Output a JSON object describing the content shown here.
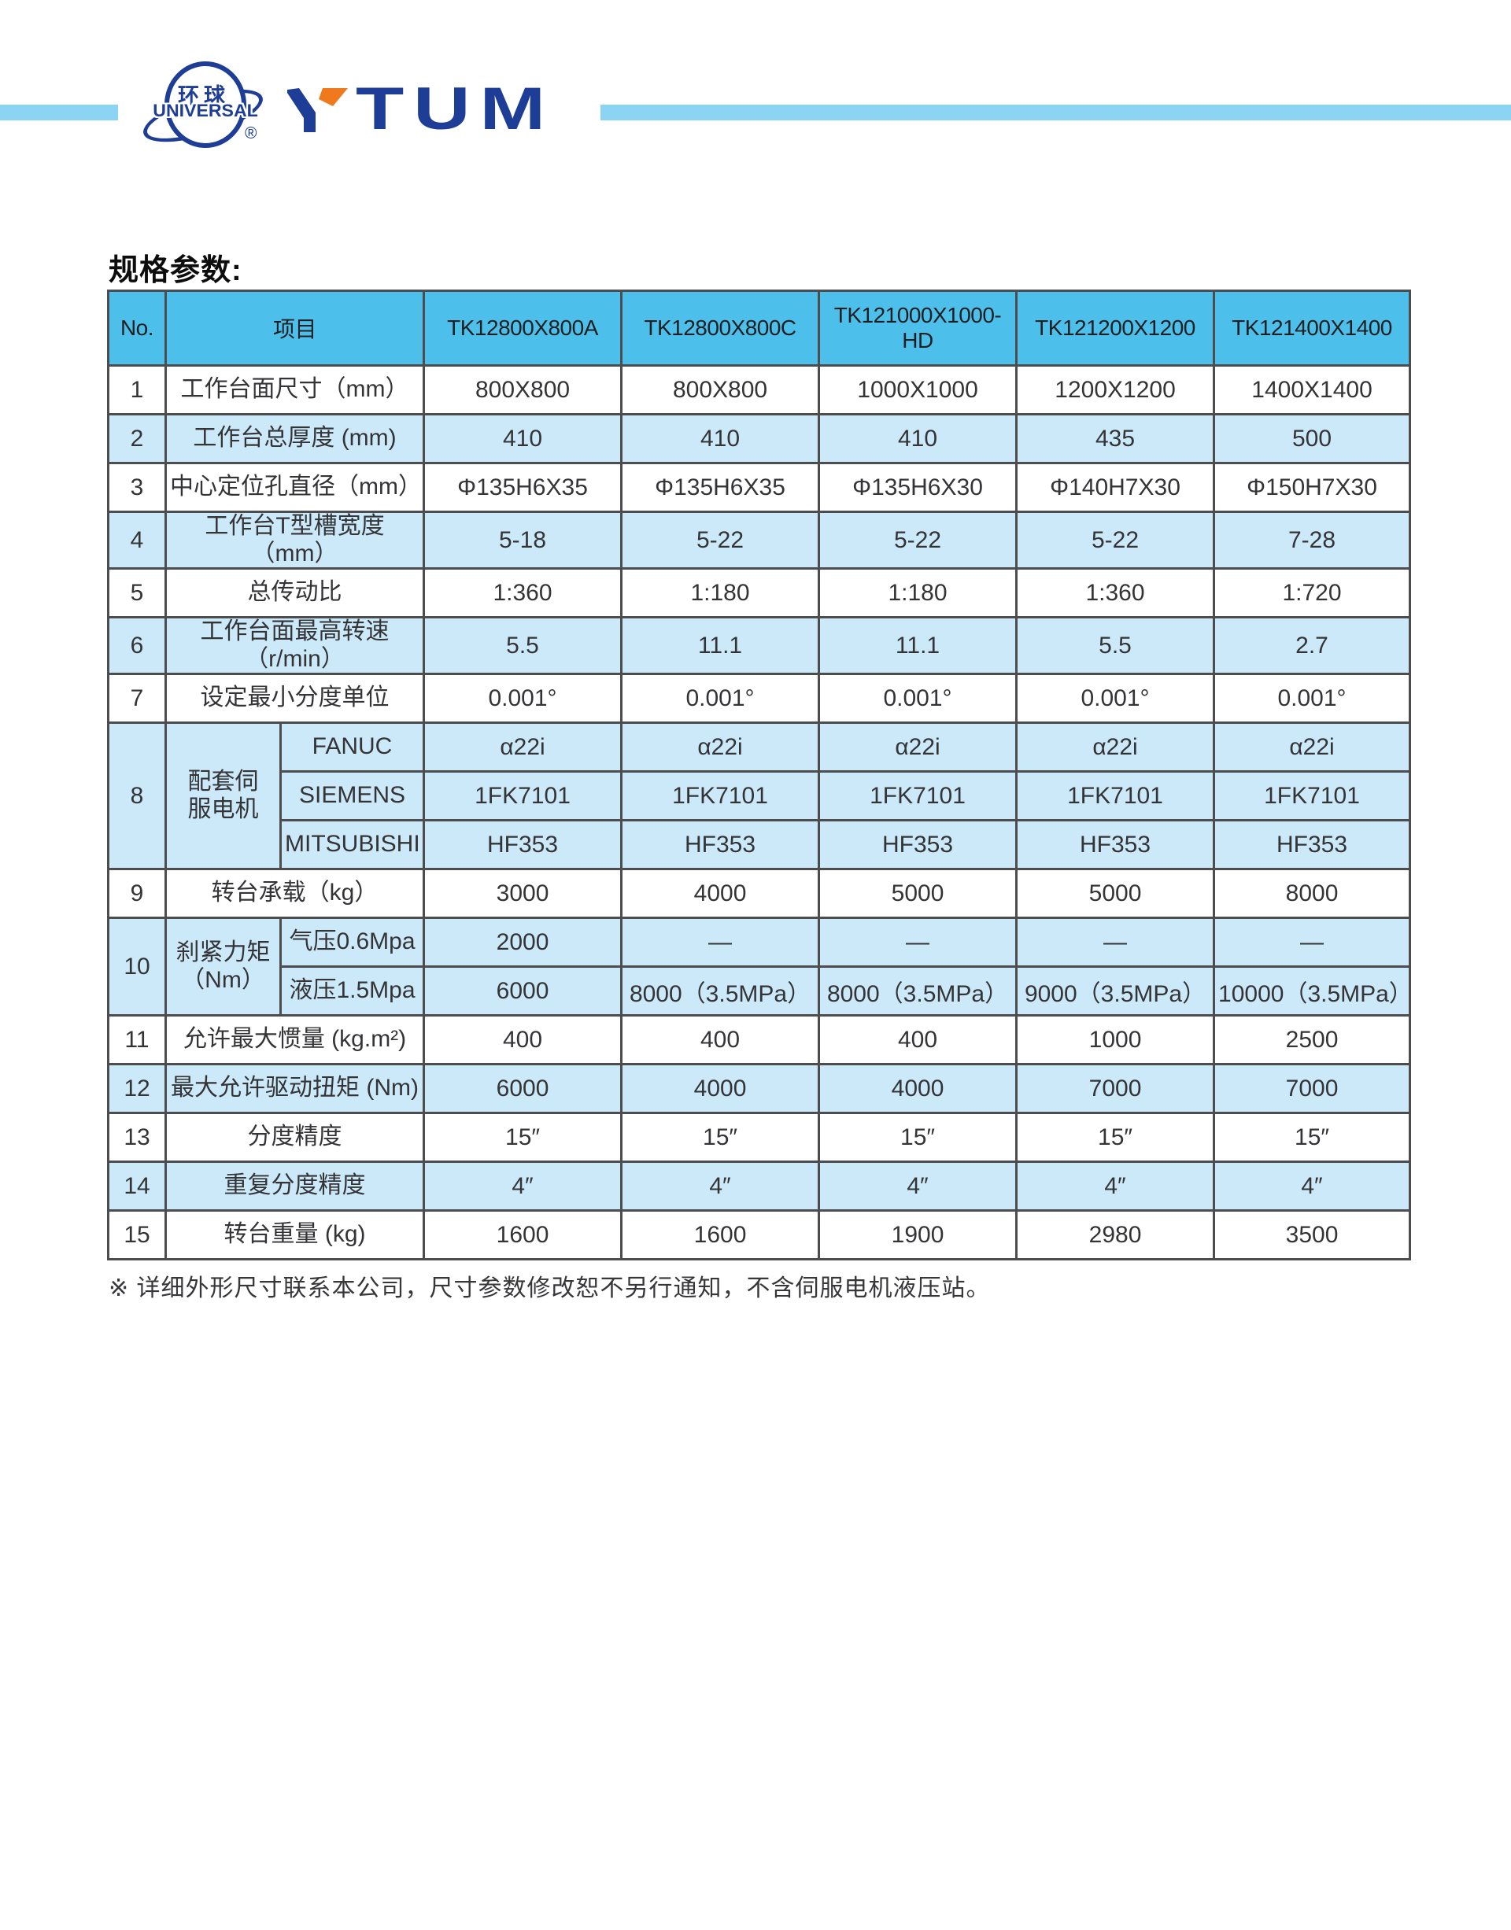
{
  "brand": {
    "globe": {
      "chinese": "环球",
      "english": "UNIVERSAL",
      "registered": "®"
    },
    "wordmark": {
      "letter_y": "Y",
      "rest": "TUM"
    }
  },
  "colors": {
    "navy": "#1e3d96",
    "orange": "#f0791d",
    "bar_blue": "#8bd4f4",
    "header_blue": "#4cbfeb",
    "row_blue": "#cce9f9",
    "grid": "#4d4d4f"
  },
  "section_title": "规格参数:",
  "table": {
    "headers": [
      "No.",
      "项目",
      "TK12800X800A",
      "TK12800X800C",
      "TK121000X1000-HD",
      "TK121200X1200",
      "TK121400X1400"
    ],
    "rows": [
      {
        "no": "1",
        "label": "工作台面尺寸（mm）",
        "values": [
          "800X800",
          "800X800",
          "1000X1000",
          "1200X1200",
          "1400X1400"
        ]
      },
      {
        "no": "2",
        "label": "工作台总厚度 (mm)",
        "values": [
          "410",
          "410",
          "410",
          "435",
          "500"
        ]
      },
      {
        "no": "3",
        "label": "中心定位孔直径（mm）",
        "values": [
          "Φ135H6X35",
          "Φ135H6X35",
          "Φ135H6X30",
          "Φ140H7X30",
          "Φ150H7X30"
        ]
      },
      {
        "no": "4",
        "label": "工作台T型槽宽度（mm）",
        "values": [
          "5-18",
          "5-22",
          "5-22",
          "5-22",
          "7-28"
        ]
      },
      {
        "no": "5",
        "label": "总传动比",
        "values": [
          "1:360",
          "1:180",
          "1:180",
          "1:360",
          "1:720"
        ]
      },
      {
        "no": "6",
        "label": "工作台面最高转速（r/min）",
        "values": [
          "5.5",
          "11.1",
          "11.1",
          "5.5",
          "2.7"
        ]
      },
      {
        "no": "7",
        "label": "设定最小分度单位",
        "values": [
          "0.001°",
          "0.001°",
          "0.001°",
          "0.001°",
          "0.001°"
        ]
      },
      {
        "no": "8",
        "label": "配套伺\n服电机",
        "sub_rows": [
          {
            "label": "FANUC",
            "values": [
              "α22i",
              "α22i",
              "α22i",
              "α22i",
              "α22i"
            ]
          },
          {
            "label": "SIEMENS",
            "values": [
              "1FK7101",
              "1FK7101",
              "1FK7101",
              "1FK7101",
              "1FK7101"
            ]
          },
          {
            "label": "MITSUBISHI",
            "values": [
              "HF353",
              "HF353",
              "HF353",
              "HF353",
              "HF353"
            ]
          }
        ]
      },
      {
        "no": "9",
        "label": "转台承载（kg）",
        "values": [
          "3000",
          "4000",
          "5000",
          "5000",
          "8000"
        ]
      },
      {
        "no": "10",
        "label": "刹紧力矩\n（Nm）",
        "sub_rows": [
          {
            "label": "气压0.6Mpa",
            "values": [
              "2000",
              "—",
              "—",
              "—",
              "—"
            ]
          },
          {
            "label": "液压1.5Mpa",
            "values": [
              "6000",
              "8000（3.5MPa）",
              "8000（3.5MPa）",
              "9000（3.5MPa）",
              "10000（3.5MPa）"
            ]
          }
        ]
      },
      {
        "no": "11",
        "label": "允许最大惯量 (kg.m²)",
        "values": [
          "400",
          "400",
          "400",
          "1000",
          "2500"
        ]
      },
      {
        "no": "12",
        "label": "最大允许驱动扭矩 (Nm)",
        "values": [
          "6000",
          "4000",
          "4000",
          "7000",
          "7000"
        ]
      },
      {
        "no": "13",
        "label": "分度精度",
        "values": [
          "15″",
          "15″",
          "15″",
          "15″",
          "15″"
        ]
      },
      {
        "no": "14",
        "label": "重复分度精度",
        "values": [
          "4″",
          "4″",
          "4″",
          "4″",
          "4″"
        ]
      },
      {
        "no": "15",
        "label": "转台重量 (kg)",
        "values": [
          "1600",
          "1600",
          "1900",
          "2980",
          "3500"
        ]
      }
    ]
  },
  "footnote": "※ 详细外形尺寸联系本公司，尺寸参数修改恕不另行通知，不含伺服电机液压站。"
}
